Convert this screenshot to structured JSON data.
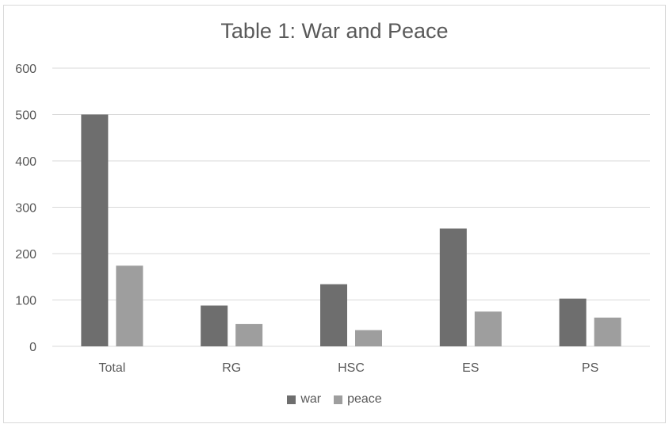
{
  "chart_data": {
    "type": "bar",
    "title": "Table 1: War and Peace",
    "categories": [
      "Total",
      "RG",
      "HSC",
      "ES",
      "PS"
    ],
    "series": [
      {
        "name": "war",
        "values": [
          500,
          88,
          134,
          254,
          103
        ],
        "color": "#6e6e6e"
      },
      {
        "name": "peace",
        "values": [
          174,
          48,
          35,
          75,
          62
        ],
        "color": "#9e9e9e"
      }
    ],
    "yticks": [
      "0",
      "100",
      "200",
      "300",
      "400",
      "500",
      "600"
    ],
    "ylim": [
      0,
      600
    ],
    "xlabel": "",
    "ylabel": "",
    "grid": true,
    "legend_position": "bottom"
  },
  "colors": {
    "gridline": "#d9d9d9",
    "text": "#595959"
  }
}
